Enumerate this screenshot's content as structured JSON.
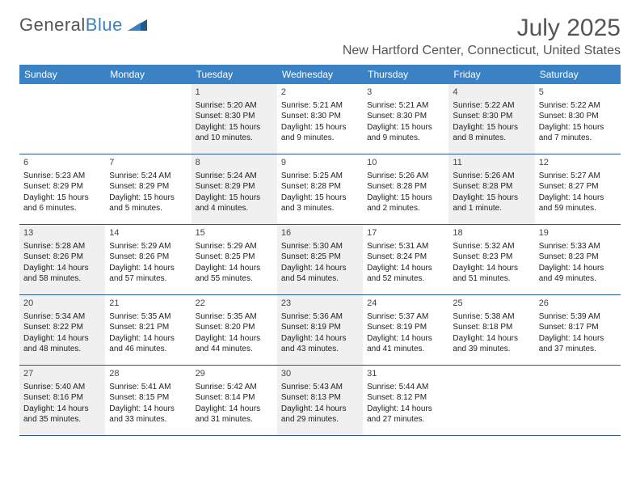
{
  "logo": {
    "text1": "General",
    "text2": "Blue"
  },
  "title": "July 2025",
  "location": "New Hartford Center, Connecticut, United States",
  "colors": {
    "header_bg": "#3b82c4",
    "header_text": "#ffffff",
    "shaded_bg": "#f0f0f0",
    "divider": "#2a5a8a",
    "title_text": "#555555",
    "body_text": "#222222"
  },
  "day_names": [
    "Sunday",
    "Monday",
    "Tuesday",
    "Wednesday",
    "Thursday",
    "Friday",
    "Saturday"
  ],
  "weeks": [
    [
      {
        "day": "",
        "shaded": false,
        "empty": true
      },
      {
        "day": "",
        "shaded": false,
        "empty": true
      },
      {
        "day": "1",
        "shaded": true,
        "sunrise": "Sunrise: 5:20 AM",
        "sunset": "Sunset: 8:30 PM",
        "daylight1": "Daylight: 15 hours",
        "daylight2": "and 10 minutes."
      },
      {
        "day": "2",
        "shaded": false,
        "sunrise": "Sunrise: 5:21 AM",
        "sunset": "Sunset: 8:30 PM",
        "daylight1": "Daylight: 15 hours",
        "daylight2": "and 9 minutes."
      },
      {
        "day": "3",
        "shaded": false,
        "sunrise": "Sunrise: 5:21 AM",
        "sunset": "Sunset: 8:30 PM",
        "daylight1": "Daylight: 15 hours",
        "daylight2": "and 9 minutes."
      },
      {
        "day": "4",
        "shaded": true,
        "sunrise": "Sunrise: 5:22 AM",
        "sunset": "Sunset: 8:30 PM",
        "daylight1": "Daylight: 15 hours",
        "daylight2": "and 8 minutes."
      },
      {
        "day": "5",
        "shaded": false,
        "sunrise": "Sunrise: 5:22 AM",
        "sunset": "Sunset: 8:30 PM",
        "daylight1": "Daylight: 15 hours",
        "daylight2": "and 7 minutes."
      }
    ],
    [
      {
        "day": "6",
        "shaded": false,
        "sunrise": "Sunrise: 5:23 AM",
        "sunset": "Sunset: 8:29 PM",
        "daylight1": "Daylight: 15 hours",
        "daylight2": "and 6 minutes."
      },
      {
        "day": "7",
        "shaded": false,
        "sunrise": "Sunrise: 5:24 AM",
        "sunset": "Sunset: 8:29 PM",
        "daylight1": "Daylight: 15 hours",
        "daylight2": "and 5 minutes."
      },
      {
        "day": "8",
        "shaded": true,
        "sunrise": "Sunrise: 5:24 AM",
        "sunset": "Sunset: 8:29 PM",
        "daylight1": "Daylight: 15 hours",
        "daylight2": "and 4 minutes."
      },
      {
        "day": "9",
        "shaded": false,
        "sunrise": "Sunrise: 5:25 AM",
        "sunset": "Sunset: 8:28 PM",
        "daylight1": "Daylight: 15 hours",
        "daylight2": "and 3 minutes."
      },
      {
        "day": "10",
        "shaded": false,
        "sunrise": "Sunrise: 5:26 AM",
        "sunset": "Sunset: 8:28 PM",
        "daylight1": "Daylight: 15 hours",
        "daylight2": "and 2 minutes."
      },
      {
        "day": "11",
        "shaded": true,
        "sunrise": "Sunrise: 5:26 AM",
        "sunset": "Sunset: 8:28 PM",
        "daylight1": "Daylight: 15 hours",
        "daylight2": "and 1 minute."
      },
      {
        "day": "12",
        "shaded": false,
        "sunrise": "Sunrise: 5:27 AM",
        "sunset": "Sunset: 8:27 PM",
        "daylight1": "Daylight: 14 hours",
        "daylight2": "and 59 minutes."
      }
    ],
    [
      {
        "day": "13",
        "shaded": true,
        "sunrise": "Sunrise: 5:28 AM",
        "sunset": "Sunset: 8:26 PM",
        "daylight1": "Daylight: 14 hours",
        "daylight2": "and 58 minutes."
      },
      {
        "day": "14",
        "shaded": false,
        "sunrise": "Sunrise: 5:29 AM",
        "sunset": "Sunset: 8:26 PM",
        "daylight1": "Daylight: 14 hours",
        "daylight2": "and 57 minutes."
      },
      {
        "day": "15",
        "shaded": false,
        "sunrise": "Sunrise: 5:29 AM",
        "sunset": "Sunset: 8:25 PM",
        "daylight1": "Daylight: 14 hours",
        "daylight2": "and 55 minutes."
      },
      {
        "day": "16",
        "shaded": true,
        "sunrise": "Sunrise: 5:30 AM",
        "sunset": "Sunset: 8:25 PM",
        "daylight1": "Daylight: 14 hours",
        "daylight2": "and 54 minutes."
      },
      {
        "day": "17",
        "shaded": false,
        "sunrise": "Sunrise: 5:31 AM",
        "sunset": "Sunset: 8:24 PM",
        "daylight1": "Daylight: 14 hours",
        "daylight2": "and 52 minutes."
      },
      {
        "day": "18",
        "shaded": false,
        "sunrise": "Sunrise: 5:32 AM",
        "sunset": "Sunset: 8:23 PM",
        "daylight1": "Daylight: 14 hours",
        "daylight2": "and 51 minutes."
      },
      {
        "day": "19",
        "shaded": false,
        "sunrise": "Sunrise: 5:33 AM",
        "sunset": "Sunset: 8:23 PM",
        "daylight1": "Daylight: 14 hours",
        "daylight2": "and 49 minutes."
      }
    ],
    [
      {
        "day": "20",
        "shaded": true,
        "sunrise": "Sunrise: 5:34 AM",
        "sunset": "Sunset: 8:22 PM",
        "daylight1": "Daylight: 14 hours",
        "daylight2": "and 48 minutes."
      },
      {
        "day": "21",
        "shaded": false,
        "sunrise": "Sunrise: 5:35 AM",
        "sunset": "Sunset: 8:21 PM",
        "daylight1": "Daylight: 14 hours",
        "daylight2": "and 46 minutes."
      },
      {
        "day": "22",
        "shaded": false,
        "sunrise": "Sunrise: 5:35 AM",
        "sunset": "Sunset: 8:20 PM",
        "daylight1": "Daylight: 14 hours",
        "daylight2": "and 44 minutes."
      },
      {
        "day": "23",
        "shaded": true,
        "sunrise": "Sunrise: 5:36 AM",
        "sunset": "Sunset: 8:19 PM",
        "daylight1": "Daylight: 14 hours",
        "daylight2": "and 43 minutes."
      },
      {
        "day": "24",
        "shaded": false,
        "sunrise": "Sunrise: 5:37 AM",
        "sunset": "Sunset: 8:19 PM",
        "daylight1": "Daylight: 14 hours",
        "daylight2": "and 41 minutes."
      },
      {
        "day": "25",
        "shaded": false,
        "sunrise": "Sunrise: 5:38 AM",
        "sunset": "Sunset: 8:18 PM",
        "daylight1": "Daylight: 14 hours",
        "daylight2": "and 39 minutes."
      },
      {
        "day": "26",
        "shaded": false,
        "sunrise": "Sunrise: 5:39 AM",
        "sunset": "Sunset: 8:17 PM",
        "daylight1": "Daylight: 14 hours",
        "daylight2": "and 37 minutes."
      }
    ],
    [
      {
        "day": "27",
        "shaded": true,
        "sunrise": "Sunrise: 5:40 AM",
        "sunset": "Sunset: 8:16 PM",
        "daylight1": "Daylight: 14 hours",
        "daylight2": "and 35 minutes."
      },
      {
        "day": "28",
        "shaded": false,
        "sunrise": "Sunrise: 5:41 AM",
        "sunset": "Sunset: 8:15 PM",
        "daylight1": "Daylight: 14 hours",
        "daylight2": "and 33 minutes."
      },
      {
        "day": "29",
        "shaded": false,
        "sunrise": "Sunrise: 5:42 AM",
        "sunset": "Sunset: 8:14 PM",
        "daylight1": "Daylight: 14 hours",
        "daylight2": "and 31 minutes."
      },
      {
        "day": "30",
        "shaded": true,
        "sunrise": "Sunrise: 5:43 AM",
        "sunset": "Sunset: 8:13 PM",
        "daylight1": "Daylight: 14 hours",
        "daylight2": "and 29 minutes."
      },
      {
        "day": "31",
        "shaded": false,
        "sunrise": "Sunrise: 5:44 AM",
        "sunset": "Sunset: 8:12 PM",
        "daylight1": "Daylight: 14 hours",
        "daylight2": "and 27 minutes."
      },
      {
        "day": "",
        "shaded": false,
        "empty": true
      },
      {
        "day": "",
        "shaded": false,
        "empty": true
      }
    ]
  ]
}
